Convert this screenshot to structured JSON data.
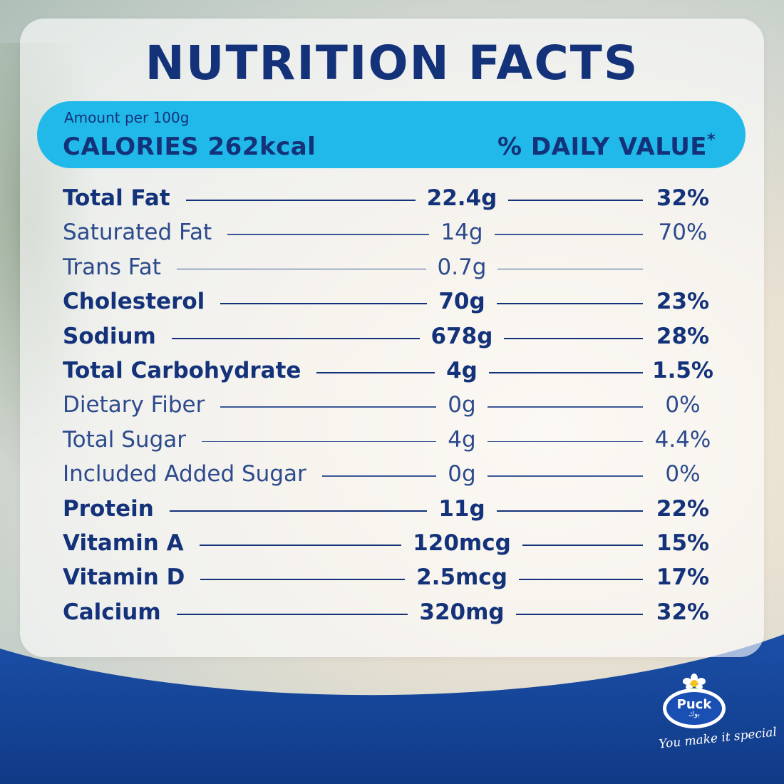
{
  "title": "NUTRITION FACTS",
  "header": {
    "amount_per": "Amount per 100g",
    "calories": "CALORIES 262kcal",
    "daily_value": "% DAILY VALUE",
    "daily_value_mark": "*"
  },
  "rows": [
    {
      "label": "Total Fat",
      "amount": "22.4g",
      "dv": "32%",
      "weight": "bold"
    },
    {
      "label": "Saturated Fat",
      "amount": "14g",
      "dv": "70%",
      "weight": "light"
    },
    {
      "label": "Trans Fat",
      "amount": "0.7g",
      "dv": "",
      "weight": "light"
    },
    {
      "label": "Cholesterol",
      "amount": "70g",
      "dv": "23%",
      "weight": "bold"
    },
    {
      "label": "Sodium",
      "amount": "678g",
      "dv": "28%",
      "weight": "bold"
    },
    {
      "label": "Total Carbohydrate",
      "amount": "4g",
      "dv": "1.5%",
      "weight": "bold"
    },
    {
      "label": "Dietary Fiber",
      "amount": "0g",
      "dv": "0%",
      "weight": "light"
    },
    {
      "label": "Total Sugar",
      "amount": "4g",
      "dv": "4.4%",
      "weight": "light"
    },
    {
      "label": "Included Added Sugar",
      "amount": "0g",
      "dv": "0%",
      "weight": "light"
    },
    {
      "label": "Protein",
      "amount": "11g",
      "dv": "22%",
      "weight": "bold"
    },
    {
      "label": "Vitamin A",
      "amount": "120mcg",
      "dv": "15%",
      "weight": "bold"
    },
    {
      "label": "Vitamin D",
      "amount": "2.5mcg",
      "dv": "17%",
      "weight": "bold"
    },
    {
      "label": "Calcium",
      "amount": "320mg",
      "dv": "32%",
      "weight": "bold"
    }
  ],
  "brand": {
    "name": "Puck",
    "name_arabic": "بوك",
    "tagline": "You make it special"
  },
  "colors": {
    "navy": "#13327a",
    "header_blue": "#21b9ea",
    "brand_blue": "#1a4fb3"
  }
}
